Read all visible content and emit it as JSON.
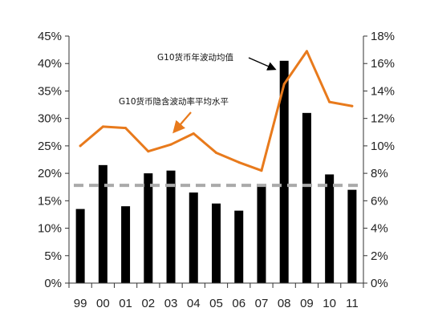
{
  "chart_data": {
    "type": "bar",
    "categories": [
      "99",
      "00",
      "01",
      "02",
      "03",
      "04",
      "05",
      "06",
      "07",
      "08",
      "09",
      "10",
      "11"
    ],
    "series": [
      {
        "name": "G10货币年波动均值",
        "chart": "bar",
        "axis": "left",
        "color": "#000000",
        "values": [
          13.5,
          21.5,
          14.0,
          20.0,
          20.5,
          16.5,
          14.5,
          13.2,
          18.0,
          40.5,
          31.0,
          19.8,
          17.0
        ]
      },
      {
        "name": "G10货币隐含波动率平均水平",
        "chart": "line",
        "axis": "right",
        "color": "#E87A1C",
        "values": [
          10.0,
          11.4,
          11.3,
          9.6,
          10.1,
          10.9,
          9.5,
          8.8,
          8.2,
          14.5,
          16.9,
          13.2,
          12.9
        ]
      }
    ],
    "reference_line": {
      "axis": "left",
      "value": 17.8,
      "style": "dashed",
      "color": "#AAAAAA"
    },
    "y_left": {
      "min": 0,
      "max": 45,
      "step": 5,
      "format": "percent"
    },
    "y_right": {
      "min": 0,
      "max": 18,
      "step": 2,
      "format": "percent"
    },
    "annotations": [
      {
        "text": "G10货币年波动均值",
        "points_to": "bar",
        "index": 9
      },
      {
        "text": "G10货币隐含波动率平均水平",
        "points_to": "line",
        "index": 4
      }
    ],
    "title": "",
    "xlabel": "",
    "ylabel": "",
    "grid": false,
    "legend": "none"
  }
}
